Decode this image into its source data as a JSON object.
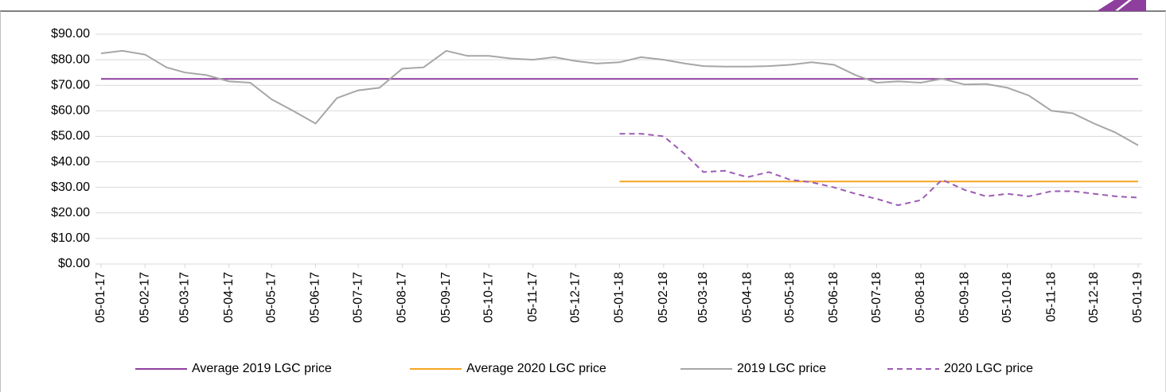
{
  "chart_data": {
    "type": "line",
    "ylim": [
      0,
      90
    ],
    "yticks": [
      {
        "value": 0,
        "label": "$0.00"
      },
      {
        "value": 10,
        "label": "$10.00"
      },
      {
        "value": 20,
        "label": "$20.00"
      },
      {
        "value": 30,
        "label": "$30.00"
      },
      {
        "value": 40,
        "label": "$40.00"
      },
      {
        "value": 50,
        "label": "$50.00"
      },
      {
        "value": 60,
        "label": "$60.00"
      },
      {
        "value": 70,
        "label": "$70.00"
      },
      {
        "value": 80,
        "label": "$80.00"
      },
      {
        "value": 90,
        "label": "$90.00"
      }
    ],
    "xlim": [
      "2017-01-05",
      "2019-01-05"
    ],
    "xticks": [
      {
        "value": "2017-01-05",
        "label": "05-01-17"
      },
      {
        "value": "2017-02-05",
        "label": "05-02-17"
      },
      {
        "value": "2017-03-05",
        "label": "05-03-17"
      },
      {
        "value": "2017-04-05",
        "label": "05-04-17"
      },
      {
        "value": "2017-05-05",
        "label": "05-05-17"
      },
      {
        "value": "2017-06-05",
        "label": "05-06-17"
      },
      {
        "value": "2017-07-05",
        "label": "05-07-17"
      },
      {
        "value": "2017-08-05",
        "label": "05-08-17"
      },
      {
        "value": "2017-09-05",
        "label": "05-09-17"
      },
      {
        "value": "2017-10-05",
        "label": "05-10-17"
      },
      {
        "value": "2017-11-05",
        "label": "05-11-17"
      },
      {
        "value": "2017-12-05",
        "label": "05-12-17"
      },
      {
        "value": "2018-01-05",
        "label": "05-01-18"
      },
      {
        "value": "2018-02-05",
        "label": "05-02-18"
      },
      {
        "value": "2018-03-05",
        "label": "05-03-18"
      },
      {
        "value": "2018-04-05",
        "label": "05-04-18"
      },
      {
        "value": "2018-05-05",
        "label": "05-05-18"
      },
      {
        "value": "2018-06-05",
        "label": "05-06-18"
      },
      {
        "value": "2018-07-05",
        "label": "05-07-18"
      },
      {
        "value": "2018-08-05",
        "label": "05-08-18"
      },
      {
        "value": "2018-09-05",
        "label": "05-09-18"
      },
      {
        "value": "2018-10-05",
        "label": "05-10-18"
      },
      {
        "value": "2018-11-05",
        "label": "05-11-18"
      },
      {
        "value": "2018-12-05",
        "label": "05-12-18"
      },
      {
        "value": "2019-01-05",
        "label": "05-01-19"
      }
    ],
    "grid": true,
    "legend": "bottom",
    "series": [
      {
        "name": "Average 2019 LGC price",
        "color": "#8e3f9e",
        "dashed": false,
        "x": [
          "2017-01-05",
          "2019-01-05"
        ],
        "values": [
          72.5,
          72.5
        ]
      },
      {
        "name": "Average 2020 LGC price",
        "color": "#f5a623",
        "dashed": false,
        "x": [
          "2018-01-05",
          "2019-01-05"
        ],
        "values": [
          32.3,
          32.3
        ]
      },
      {
        "name": "2019 LGC price",
        "color": "#a6a6a6",
        "dashed": false,
        "x": [
          "2017-01-05",
          "2017-01-20",
          "2017-02-05",
          "2017-02-20",
          "2017-03-05",
          "2017-03-20",
          "2017-04-05",
          "2017-04-20",
          "2017-05-05",
          "2017-05-20",
          "2017-06-05",
          "2017-06-20",
          "2017-07-05",
          "2017-07-20",
          "2017-08-05",
          "2017-08-20",
          "2017-09-05",
          "2017-09-20",
          "2017-10-05",
          "2017-10-20",
          "2017-11-05",
          "2017-11-20",
          "2017-12-05",
          "2017-12-20",
          "2018-01-05",
          "2018-01-20",
          "2018-02-05",
          "2018-02-20",
          "2018-03-05",
          "2018-03-20",
          "2018-04-05",
          "2018-04-20",
          "2018-05-05",
          "2018-05-20",
          "2018-06-05",
          "2018-06-20",
          "2018-07-05",
          "2018-07-20",
          "2018-08-05",
          "2018-08-20",
          "2018-09-05",
          "2018-09-20",
          "2018-10-05",
          "2018-10-20",
          "2018-11-05",
          "2018-11-20",
          "2018-12-05",
          "2018-12-20",
          "2019-01-05"
        ],
        "values": [
          82.5,
          83.5,
          82,
          77,
          75,
          74,
          71.5,
          71,
          64.5,
          60,
          55,
          65,
          68,
          69,
          76.5,
          77,
          83.5,
          81.5,
          81.5,
          80.5,
          80,
          81,
          79.5,
          78.5,
          79,
          81,
          80,
          78.5,
          77.5,
          77.3,
          77.3,
          77.5,
          78,
          79,
          78,
          74,
          71,
          71.5,
          71,
          72.5,
          70.3,
          70.5,
          69,
          66,
          60,
          59,
          55,
          51.5,
          46.5
        ]
      },
      {
        "name": "2020 LGC price",
        "color": "#9c5bb5",
        "dashed": true,
        "x": [
          "2018-01-05",
          "2018-01-20",
          "2018-02-05",
          "2018-02-20",
          "2018-03-05",
          "2018-03-20",
          "2018-04-05",
          "2018-04-20",
          "2018-05-05",
          "2018-05-20",
          "2018-06-05",
          "2018-06-20",
          "2018-07-05",
          "2018-07-20",
          "2018-08-05",
          "2018-08-20",
          "2018-09-05",
          "2018-09-20",
          "2018-10-05",
          "2018-10-20",
          "2018-11-05",
          "2018-11-20",
          "2018-12-05",
          "2018-12-20",
          "2019-01-05"
        ],
        "values": [
          51,
          51,
          50,
          43,
          36,
          36.5,
          34,
          36,
          33,
          32,
          30,
          27.5,
          25.5,
          23,
          25,
          33,
          29,
          26.5,
          27.5,
          26.5,
          28.5,
          28.5,
          27.5,
          26.5,
          26
        ]
      }
    ]
  }
}
